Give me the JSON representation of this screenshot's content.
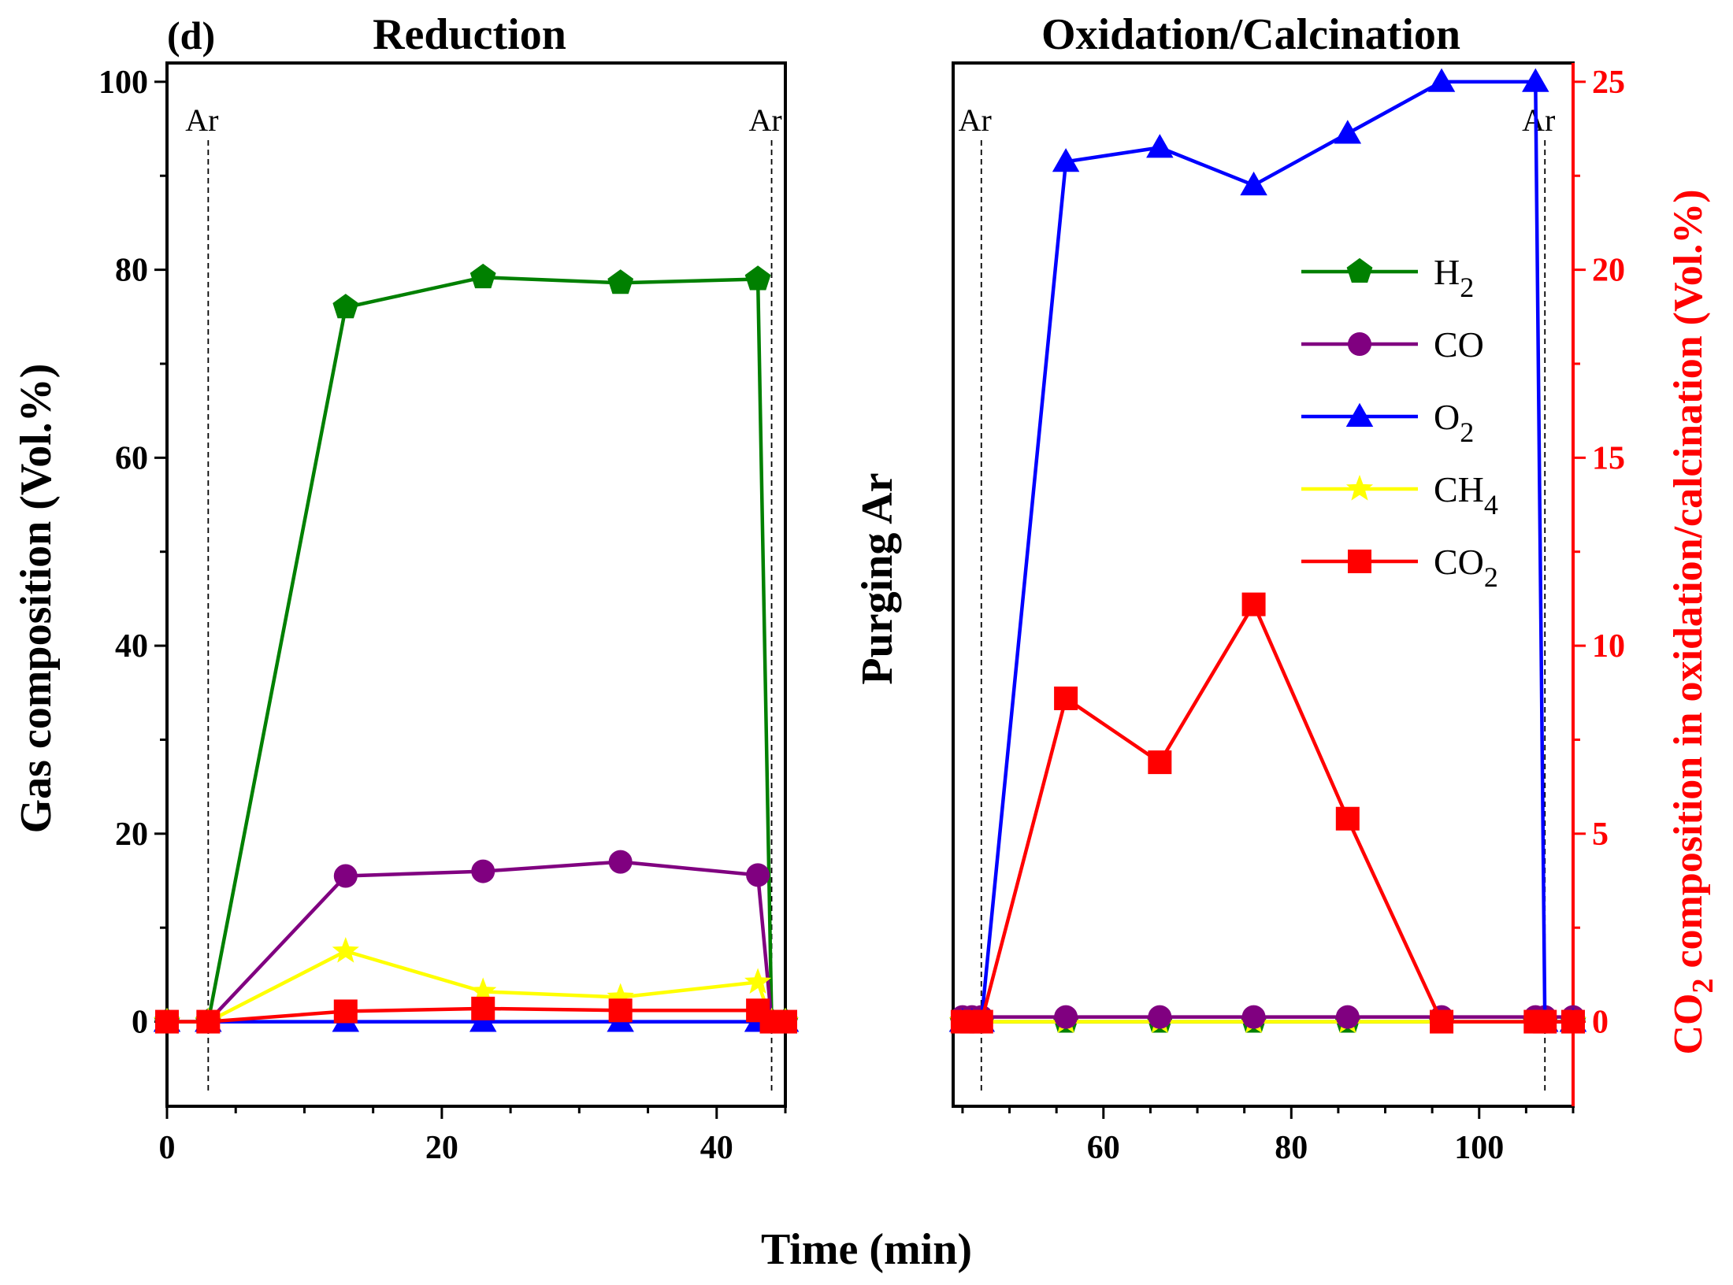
{
  "panel_label": "(d)",
  "shared_xlabel": "Time (min)",
  "middle_label": "Purging Ar",
  "legend": [
    {
      "label": "H",
      "sub": "2",
      "color": "#008000",
      "marker": "pentagon"
    },
    {
      "label": "CO",
      "sub": "",
      "color": "#800080",
      "marker": "circle"
    },
    {
      "label": "O",
      "sub": "2",
      "color": "#0000ff",
      "marker": "triangle"
    },
    {
      "label": "CH",
      "sub": "4",
      "color": "#ffff00",
      "marker": "star"
    },
    {
      "label": "CO",
      "sub": "2",
      "color": "#ff0000",
      "marker": "square"
    }
  ],
  "chart_data": [
    {
      "type": "line",
      "title": "Reduction",
      "xlabel": "Time (min)",
      "ylabel": "Gas composition (Vol.%)",
      "xlim": [
        0,
        45
      ],
      "ylim": [
        -9,
        102
      ],
      "xticks": [
        0,
        20,
        40
      ],
      "yticks": [
        0,
        20,
        40,
        60,
        80,
        100
      ],
      "annotations": [
        {
          "text": "Ar",
          "x": 3
        },
        {
          "text": "Ar",
          "x": 44
        }
      ],
      "series": [
        {
          "name": "H2",
          "color": "#008000",
          "marker": "pentagon",
          "x": [
            0,
            3,
            13,
            23,
            33,
            43,
            44,
            45
          ],
          "y": [
            0,
            0,
            76,
            79.2,
            78.6,
            79,
            0,
            0
          ]
        },
        {
          "name": "CO",
          "color": "#800080",
          "marker": "circle",
          "x": [
            0,
            3,
            13,
            23,
            33,
            43,
            44,
            45
          ],
          "y": [
            0,
            0,
            15.5,
            16,
            17,
            15.6,
            0,
            0
          ]
        },
        {
          "name": "O2",
          "color": "#0000ff",
          "marker": "triangle",
          "x": [
            0,
            3,
            13,
            23,
            33,
            43,
            44,
            45
          ],
          "y": [
            0,
            0,
            0,
            0,
            0,
            0,
            0,
            0
          ]
        },
        {
          "name": "CH4",
          "color": "#ffff00",
          "marker": "star",
          "x": [
            0,
            3,
            13,
            23,
            33,
            43,
            44,
            45
          ],
          "y": [
            0,
            0,
            7.5,
            3.2,
            2.6,
            4.2,
            0,
            0
          ]
        },
        {
          "name": "CO2",
          "color": "#ff0000",
          "marker": "square",
          "x": [
            0,
            3,
            13,
            23,
            33,
            43,
            44,
            45
          ],
          "y": [
            0,
            0,
            1.1,
            1.4,
            1.2,
            1.2,
            0,
            0
          ]
        }
      ]
    },
    {
      "type": "line",
      "title": "Oxidation/Calcination",
      "xlabel": "Time (min)",
      "ylabel": "",
      "y2label": "CO2 composition in oxidation/calcination (Vol.%)",
      "y2label_parts": {
        "pre": "CO",
        "sub": "2",
        "post": " composition in oxidation/calcination (Vol.%)"
      },
      "xlim": [
        44,
        110
      ],
      "ylim": [
        -9,
        102
      ],
      "y2lim": [
        -2.25,
        25.5
      ],
      "xticks": [
        60,
        80,
        100
      ],
      "y2ticks": [
        0,
        5,
        10,
        15,
        20,
        25
      ],
      "annotations": [
        {
          "text": "Ar",
          "x": 47
        },
        {
          "text": "Ar",
          "x": 107
        }
      ],
      "series": [
        {
          "name": "H2",
          "color": "#008000",
          "marker": "pentagon",
          "axis": "left",
          "x": [
            45,
            46,
            47,
            56,
            66,
            76,
            86,
            96,
            106,
            107,
            110
          ],
          "y": [
            0,
            0,
            0,
            0,
            0,
            0,
            0,
            0,
            0,
            0,
            0
          ]
        },
        {
          "name": "CH4",
          "color": "#ffff00",
          "marker": "star",
          "axis": "left",
          "x": [
            45,
            46,
            47,
            56,
            66,
            76,
            86,
            96,
            106,
            107,
            110
          ],
          "y": [
            0,
            0,
            0,
            0,
            0,
            0,
            0,
            0,
            0,
            0,
            0
          ]
        },
        {
          "name": "CO",
          "color": "#800080",
          "marker": "circle",
          "axis": "left",
          "x": [
            45,
            46,
            47,
            56,
            66,
            76,
            86,
            96,
            106,
            107,
            110
          ],
          "y": [
            0.5,
            0.5,
            0.5,
            0.5,
            0.5,
            0.5,
            0.5,
            0.5,
            0.5,
            0.5,
            0.5
          ]
        },
        {
          "name": "O2",
          "color": "#0000ff",
          "marker": "triangle",
          "axis": "left",
          "x": [
            45,
            46,
            47,
            56,
            66,
            76,
            86,
            96,
            106,
            107,
            110
          ],
          "y": [
            0,
            0,
            0,
            91.5,
            93,
            89,
            94.5,
            100,
            100,
            0,
            0
          ]
        },
        {
          "name": "CO2",
          "color": "#ff0000",
          "marker": "square",
          "axis": "right",
          "x": [
            45,
            46,
            47,
            56,
            66,
            76,
            86,
            96,
            106,
            107,
            110
          ],
          "y": [
            0,
            0,
            0,
            8.6,
            6.9,
            11.1,
            5.4,
            0,
            0,
            0,
            0
          ]
        }
      ]
    }
  ]
}
